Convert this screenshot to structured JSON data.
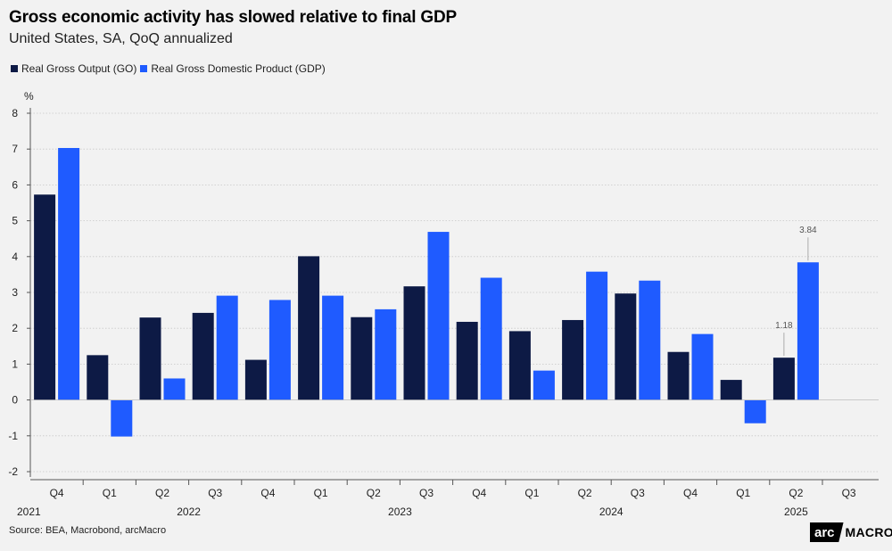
{
  "chart_data": {
    "type": "bar",
    "title": "Gross economic activity has slowed relative to final GDP",
    "subtitle": "United States, SA, QoQ annualized",
    "ylabel": "%",
    "ylim": [
      -2,
      8
    ],
    "yticks": [
      -2,
      -1,
      0,
      1,
      2,
      3,
      4,
      5,
      6,
      7,
      8
    ],
    "grid": true,
    "legend_position": "top-left",
    "categories": [
      "Q4",
      "Q1",
      "Q2",
      "Q3",
      "Q4",
      "Q1",
      "Q2",
      "Q3",
      "Q4",
      "Q1",
      "Q2",
      "Q3",
      "Q4",
      "Q1",
      "Q2",
      "Q3"
    ],
    "years": [
      {
        "label": "2021",
        "start": 0,
        "end": 0,
        "align": "left"
      },
      {
        "label": "2022",
        "start": 1,
        "end": 4,
        "align": "center"
      },
      {
        "label": "2023",
        "start": 5,
        "end": 8,
        "align": "center"
      },
      {
        "label": "2024",
        "start": 9,
        "end": 12,
        "align": "center"
      },
      {
        "label": "2025",
        "start": 13,
        "end": 15,
        "align": "center"
      }
    ],
    "series": [
      {
        "name": "Real Gross Output (GO)",
        "color": "#0d1a45",
        "values": [
          5.73,
          1.25,
          2.3,
          2.43,
          1.12,
          4.01,
          2.31,
          3.17,
          2.18,
          1.92,
          2.23,
          2.97,
          1.34,
          0.56,
          1.18,
          null
        ]
      },
      {
        "name": "Real Gross Domestic Product (GDP)",
        "color": "#1f5bff",
        "values": [
          7.03,
          -1.02,
          0.6,
          2.91,
          2.79,
          2.91,
          2.53,
          4.69,
          3.41,
          0.82,
          3.58,
          3.33,
          1.84,
          -0.65,
          3.84,
          null
        ]
      }
    ],
    "annotations": [
      {
        "text": "1.18",
        "series": 0,
        "index": 14
      },
      {
        "text": "3.84",
        "series": 1,
        "index": 14
      }
    ]
  },
  "source": "Source: BEA, Macrobond, arcMacro",
  "logo": {
    "part1": "arc",
    "part2": "MACRO"
  }
}
